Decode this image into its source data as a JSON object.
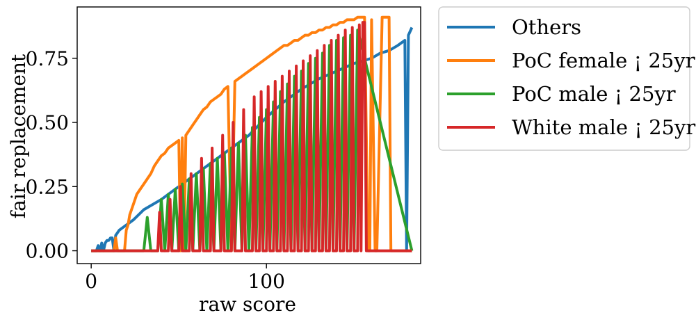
{
  "chart_data": {
    "type": "line",
    "xlabel": "raw score",
    "ylabel": "fair replacement",
    "xlim": [
      -8,
      188
    ],
    "ylim": [
      -0.05,
      0.95
    ],
    "x_ticks": [
      0,
      100
    ],
    "x_tick_labels": [
      "0",
      "100"
    ],
    "y_ticks": [
      0.0,
      0.25,
      0.5,
      0.75
    ],
    "y_tick_labels": [
      "0.00",
      "0.25",
      "0.50",
      "0.75"
    ],
    "grid": false,
    "legend_position": "outside-right",
    "series": [
      {
        "name": "Others",
        "color": "#1f77b4",
        "x": [
          0,
          3,
          4,
          5,
          6,
          7,
          8,
          9,
          10,
          11,
          12,
          13,
          14,
          16,
          18,
          20,
          24,
          30,
          40,
          50,
          60,
          70,
          80,
          90,
          100,
          110,
          120,
          130,
          140,
          150,
          160,
          165,
          170,
          175,
          179,
          180,
          181,
          183
        ],
        "y": [
          0.0,
          0.0,
          0.02,
          0.0,
          0.03,
          0.0,
          0.03,
          0.04,
          0.04,
          0.05,
          0.05,
          0.0,
          0.06,
          0.08,
          0.09,
          0.1,
          0.12,
          0.16,
          0.2,
          0.25,
          0.3,
          0.35,
          0.4,
          0.45,
          0.52,
          0.58,
          0.63,
          0.67,
          0.7,
          0.73,
          0.75,
          0.77,
          0.78,
          0.8,
          0.82,
          0.0,
          0.84,
          0.87
        ]
      },
      {
        "name": "PoC female ¡ 25yr",
        "color": "#ff7f0e",
        "x": [
          0,
          13,
          14,
          15,
          19,
          20,
          21,
          22,
          24,
          26,
          28,
          30,
          32,
          34,
          36,
          38,
          40,
          42,
          44,
          46,
          48,
          50,
          51,
          52,
          53,
          54,
          56,
          58,
          60,
          62,
          64,
          66,
          68,
          70,
          72,
          74,
          76,
          78,
          80,
          82,
          84,
          86,
          88,
          90,
          92,
          94,
          96,
          98,
          100,
          102,
          104,
          106,
          108,
          110,
          112,
          114,
          116,
          118,
          120,
          122,
          124,
          126,
          128,
          130,
          132,
          134,
          136,
          138,
          140,
          142,
          144,
          146,
          148,
          150,
          152,
          154,
          156,
          158,
          159,
          160,
          162,
          163,
          166,
          170,
          171,
          172,
          180,
          183
        ],
        "y": [
          0.0,
          0.0,
          0.05,
          0.0,
          0.0,
          0.08,
          0.1,
          0.14,
          0.18,
          0.22,
          0.24,
          0.26,
          0.28,
          0.3,
          0.33,
          0.35,
          0.37,
          0.38,
          0.4,
          0.41,
          0.42,
          0.43,
          0.0,
          0.44,
          0.0,
          0.45,
          0.47,
          0.49,
          0.51,
          0.53,
          0.55,
          0.56,
          0.58,
          0.59,
          0.6,
          0.61,
          0.63,
          0.64,
          0.0,
          0.66,
          0.67,
          0.68,
          0.69,
          0.7,
          0.71,
          0.72,
          0.73,
          0.74,
          0.75,
          0.76,
          0.77,
          0.78,
          0.79,
          0.8,
          0.8,
          0.81,
          0.82,
          0.82,
          0.83,
          0.84,
          0.84,
          0.85,
          0.85,
          0.86,
          0.86,
          0.87,
          0.87,
          0.88,
          0.88,
          0.89,
          0.89,
          0.9,
          0.9,
          0.9,
          0.91,
          0.91,
          0.91,
          0.0,
          0.0,
          0.9,
          0.0,
          0.0,
          0.91,
          0.91,
          0.0,
          0.0,
          0.0,
          0.0
        ]
      },
      {
        "name": "PoC male ¡ 25yr",
        "color": "#2ca02c",
        "x": [
          0,
          30,
          32,
          34,
          38,
          40,
          42,
          44,
          46,
          48,
          50,
          52,
          54,
          56,
          58,
          60,
          62,
          64,
          66,
          68,
          70,
          72,
          74,
          76,
          78,
          80,
          82,
          84,
          86,
          88,
          90,
          92,
          94,
          96,
          98,
          100,
          102,
          104,
          106,
          108,
          110,
          112,
          114,
          116,
          118,
          120,
          122,
          124,
          126,
          128,
          130,
          132,
          134,
          136,
          138,
          140,
          142,
          144,
          146,
          148,
          150,
          152,
          183
        ],
        "y": [
          0.0,
          0.0,
          0.13,
          0.0,
          0.0,
          0.2,
          0.0,
          0.22,
          0.0,
          0.24,
          0.0,
          0.26,
          0.0,
          0.28,
          0.0,
          0.3,
          0.0,
          0.32,
          0.0,
          0.34,
          0.0,
          0.36,
          0.0,
          0.38,
          0.0,
          0.4,
          0.0,
          0.42,
          0.0,
          0.45,
          0.0,
          0.48,
          0.0,
          0.52,
          0.0,
          0.55,
          0.0,
          0.58,
          0.0,
          0.62,
          0.0,
          0.65,
          0.0,
          0.68,
          0.0,
          0.7,
          0.0,
          0.73,
          0.0,
          0.75,
          0.0,
          0.77,
          0.0,
          0.8,
          0.0,
          0.82,
          0.0,
          0.83,
          0.0,
          0.84,
          0.0,
          0.86,
          0.0
        ]
      },
      {
        "name": "White male ¡ 25yr",
        "color": "#d62728",
        "x": [
          0,
          38,
          39,
          40,
          44,
          45,
          46,
          50,
          51,
          52,
          56,
          57,
          58,
          62,
          63,
          64,
          68,
          69,
          70,
          74,
          75,
          76,
          80,
          81,
          82,
          86,
          87,
          88,
          92,
          93,
          94,
          96,
          97,
          98,
          100,
          101,
          102,
          104,
          105,
          106,
          108,
          109,
          110,
          112,
          113,
          114,
          116,
          117,
          118,
          120,
          121,
          122,
          124,
          125,
          126,
          128,
          129,
          130,
          132,
          133,
          134,
          136,
          137,
          138,
          140,
          141,
          142,
          144,
          145,
          146,
          148,
          149,
          150,
          152,
          153,
          154,
          155,
          156,
          157,
          183
        ],
        "y": [
          0.0,
          0.0,
          0.15,
          0.0,
          0.0,
          0.2,
          0.0,
          0.0,
          0.25,
          0.0,
          0.0,
          0.3,
          0.0,
          0.0,
          0.36,
          0.0,
          0.0,
          0.4,
          0.0,
          0.0,
          0.45,
          0.0,
          0.0,
          0.5,
          0.0,
          0.0,
          0.55,
          0.0,
          0.0,
          0.6,
          0.0,
          0.0,
          0.62,
          0.0,
          0.0,
          0.64,
          0.0,
          0.0,
          0.66,
          0.0,
          0.0,
          0.68,
          0.0,
          0.0,
          0.7,
          0.0,
          0.0,
          0.72,
          0.0,
          0.0,
          0.74,
          0.0,
          0.0,
          0.76,
          0.0,
          0.0,
          0.78,
          0.0,
          0.0,
          0.8,
          0.0,
          0.0,
          0.82,
          0.0,
          0.0,
          0.84,
          0.0,
          0.0,
          0.86,
          0.0,
          0.0,
          0.87,
          0.0,
          0.0,
          0.88,
          0.0,
          0.89,
          0.89,
          0.0,
          0.0
        ]
      }
    ]
  }
}
